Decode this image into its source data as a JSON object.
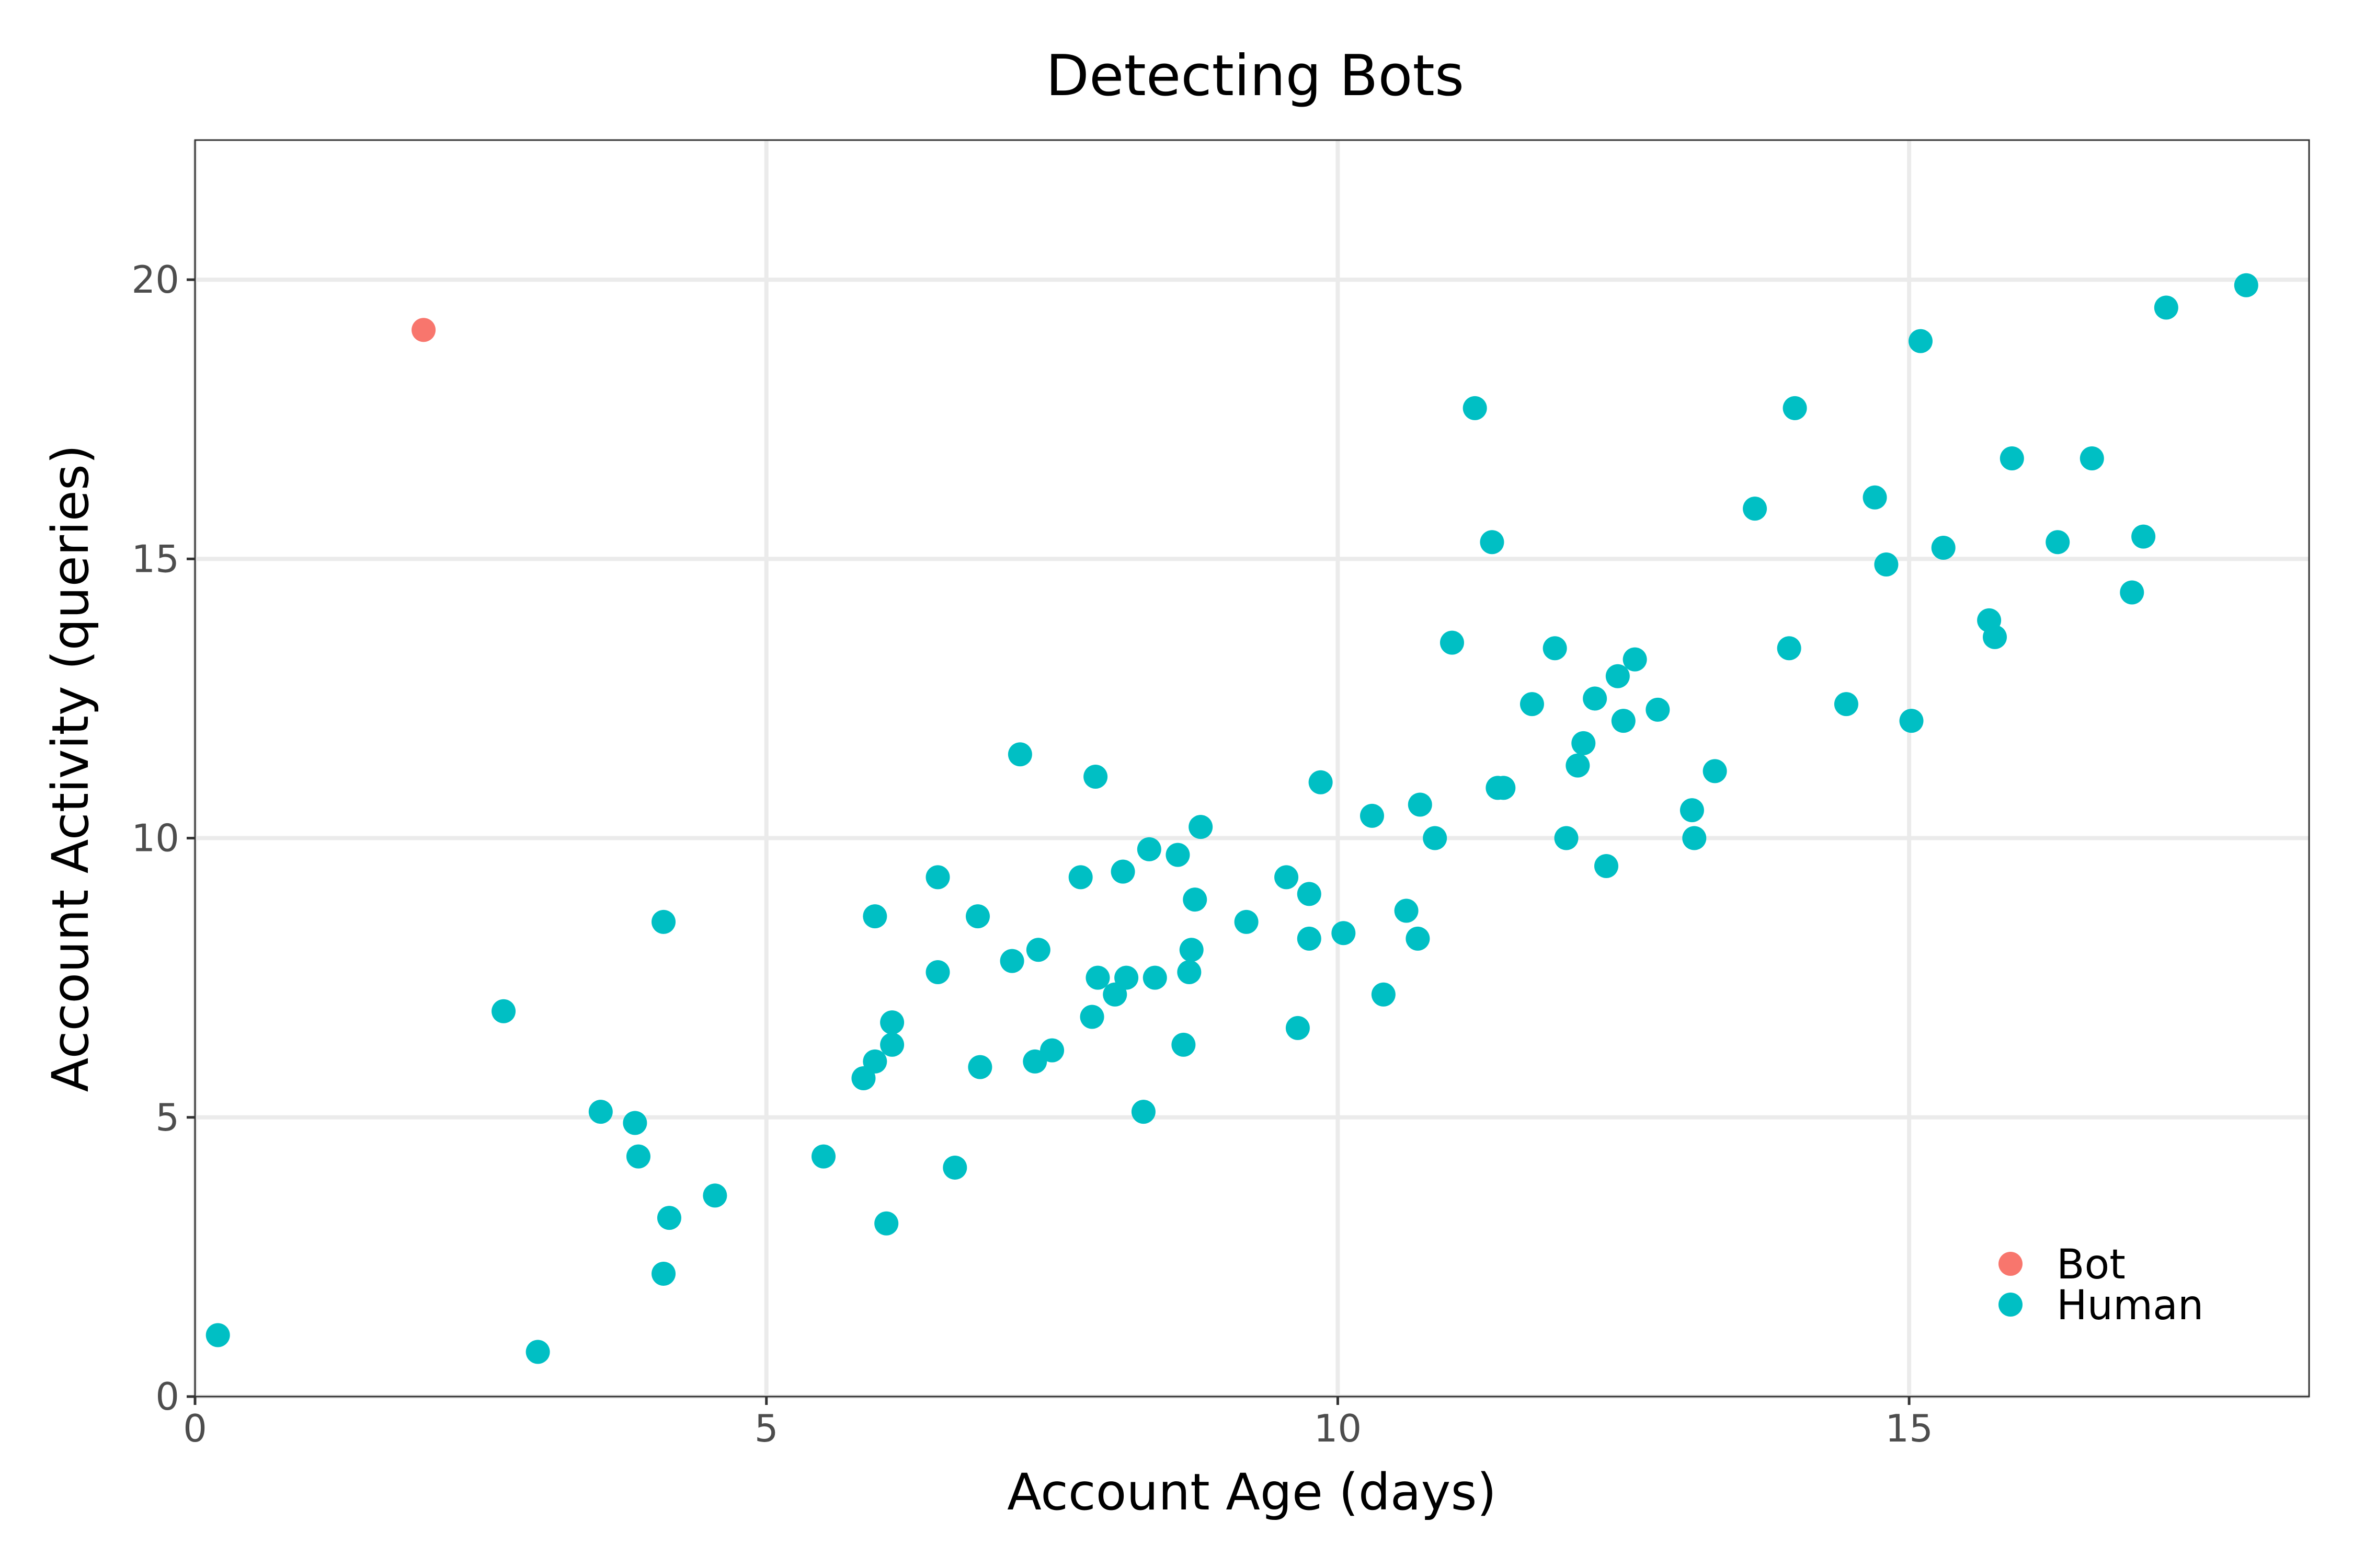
{
  "chart_data": {
    "type": "scatter",
    "title": "Detecting Bots",
    "xlabel": "Account Age (days)",
    "ylabel": "Account Activity (queries)",
    "xlim": [
      0,
      18.5
    ],
    "ylim": [
      0,
      22.5
    ],
    "x_ticks": [
      "0",
      "5",
      "10",
      "15"
    ],
    "y_ticks": [
      "0",
      "5",
      "10",
      "15",
      "20"
    ],
    "grid": true,
    "legend_position": "bottom-right",
    "series": [
      {
        "name": "Bot",
        "color": "#F8766D",
        "points": [
          [
            2.0,
            19.1
          ]
        ]
      },
      {
        "name": "Human",
        "color": "#00BFC4",
        "points": [
          [
            0.2,
            1.1
          ],
          [
            2.7,
            6.9
          ],
          [
            3.0,
            0.8
          ],
          [
            3.55,
            5.1
          ],
          [
            3.85,
            4.9
          ],
          [
            3.88,
            4.3
          ],
          [
            4.1,
            8.5
          ],
          [
            4.15,
            3.2
          ],
          [
            4.1,
            2.2
          ],
          [
            4.55,
            3.6
          ],
          [
            5.5,
            4.3
          ],
          [
            5.85,
            5.7
          ],
          [
            5.95,
            8.6
          ],
          [
            5.95,
            6.0
          ],
          [
            6.05,
            3.1
          ],
          [
            6.1,
            6.7
          ],
          [
            6.1,
            6.3
          ],
          [
            6.5,
            9.3
          ],
          [
            6.5,
            7.6
          ],
          [
            6.65,
            4.1
          ],
          [
            6.85,
            8.6
          ],
          [
            6.87,
            5.9
          ],
          [
            7.15,
            7.8
          ],
          [
            7.22,
            11.5
          ],
          [
            7.35,
            6.0
          ],
          [
            7.38,
            8.0
          ],
          [
            7.5,
            6.2
          ],
          [
            7.75,
            9.3
          ],
          [
            7.85,
            6.8
          ],
          [
            7.88,
            11.1
          ],
          [
            7.9,
            7.5
          ],
          [
            8.05,
            7.2
          ],
          [
            8.12,
            9.4
          ],
          [
            8.15,
            7.5
          ],
          [
            8.3,
            5.1
          ],
          [
            8.35,
            9.8
          ],
          [
            8.4,
            7.5
          ],
          [
            8.6,
            9.7
          ],
          [
            8.65,
            6.3
          ],
          [
            8.7,
            7.6
          ],
          [
            8.72,
            8.0
          ],
          [
            8.75,
            8.9
          ],
          [
            8.8,
            10.2
          ],
          [
            9.2,
            8.5
          ],
          [
            9.55,
            9.3
          ],
          [
            9.65,
            6.6
          ],
          [
            9.75,
            9.0
          ],
          [
            9.75,
            8.2
          ],
          [
            9.85,
            11.0
          ],
          [
            10.05,
            8.3
          ],
          [
            10.3,
            10.4
          ],
          [
            10.4,
            7.2
          ],
          [
            10.6,
            8.7
          ],
          [
            10.7,
            8.2
          ],
          [
            10.72,
            10.6
          ],
          [
            10.85,
            10.0
          ],
          [
            11.0,
            13.5
          ],
          [
            11.2,
            17.7
          ],
          [
            11.35,
            15.3
          ],
          [
            11.4,
            10.9
          ],
          [
            11.45,
            10.9
          ],
          [
            11.7,
            12.4
          ],
          [
            11.9,
            13.4
          ],
          [
            12.0,
            10.0
          ],
          [
            12.1,
            11.3
          ],
          [
            12.15,
            11.7
          ],
          [
            12.25,
            12.5
          ],
          [
            12.35,
            9.5
          ],
          [
            12.45,
            12.9
          ],
          [
            12.5,
            12.1
          ],
          [
            12.6,
            13.2
          ],
          [
            12.8,
            12.3
          ],
          [
            13.1,
            10.5
          ],
          [
            13.12,
            10.0
          ],
          [
            13.3,
            11.2
          ],
          [
            13.65,
            15.9
          ],
          [
            13.95,
            13.4
          ],
          [
            14.0,
            17.7
          ],
          [
            14.45,
            12.4
          ],
          [
            14.7,
            16.1
          ],
          [
            14.8,
            14.9
          ],
          [
            15.02,
            12.1
          ],
          [
            15.1,
            18.9
          ],
          [
            15.3,
            15.2
          ],
          [
            15.7,
            13.9
          ],
          [
            15.75,
            13.6
          ],
          [
            15.9,
            16.8
          ],
          [
            16.3,
            15.3
          ],
          [
            16.6,
            16.8
          ],
          [
            16.95,
            14.4
          ],
          [
            17.05,
            15.4
          ],
          [
            17.25,
            19.5
          ],
          [
            17.95,
            19.9
          ]
        ]
      }
    ]
  }
}
